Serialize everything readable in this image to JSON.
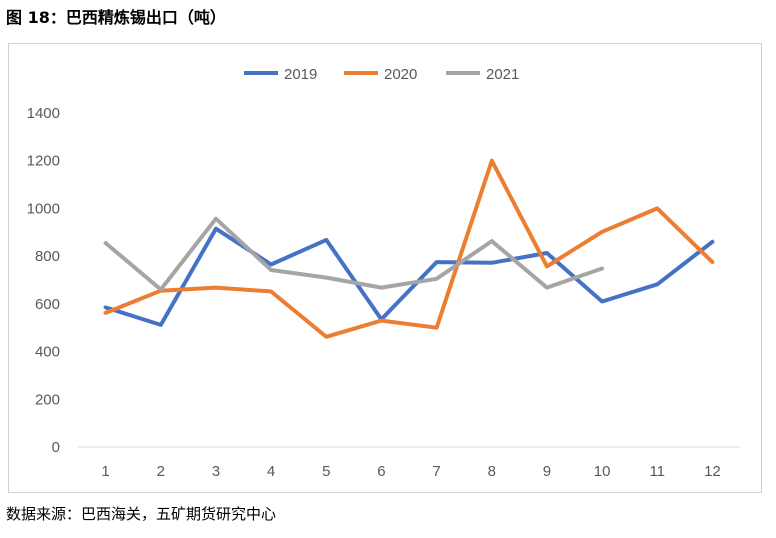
{
  "title": "图 18：巴西精炼锡出口（吨）",
  "source": "数据来源：巴西海关，五矿期货研究中心",
  "chart_data": {
    "type": "line",
    "categories": [
      "1",
      "2",
      "3",
      "4",
      "5",
      "6",
      "7",
      "8",
      "9",
      "10",
      "11",
      "12"
    ],
    "ylim": [
      0,
      1400
    ],
    "yticks": [
      0,
      200,
      400,
      600,
      800,
      1000,
      1200,
      1400
    ],
    "grid": false,
    "legend": "top-center",
    "series": [
      {
        "name": "2019",
        "color": "#4472C4",
        "values": [
          585,
          512,
          915,
          765,
          868,
          535,
          775,
          772,
          813,
          610,
          682,
          860
        ]
      },
      {
        "name": "2020",
        "color": "#ED7D31",
        "values": [
          562,
          655,
          668,
          652,
          462,
          530,
          500,
          1200,
          757,
          902,
          1000,
          775
        ]
      },
      {
        "name": "2021",
        "color": "#A5A5A5",
        "values": [
          855,
          660,
          957,
          742,
          710,
          668,
          705,
          863,
          668,
          748,
          null,
          null
        ]
      }
    ]
  }
}
